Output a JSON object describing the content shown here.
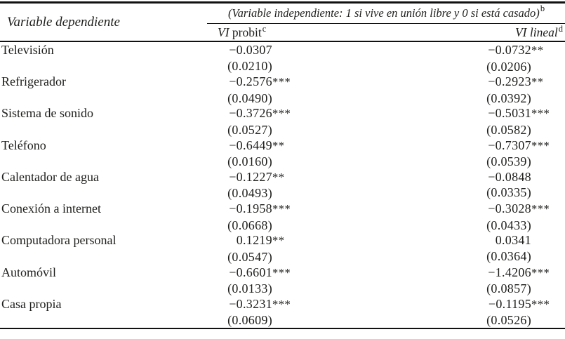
{
  "table": {
    "col0_header": "Variable dependiente",
    "span_header": "(Variable independiente: 1 si vive en unión libre y 0 si está casado)",
    "span_header_sup": "b",
    "col1_header_vi": "VI",
    "col1_header_rest": " probit",
    "col1_header_sup": "c",
    "col2_header_vi": "VI",
    "col2_header_rest": " lineal",
    "col2_header_sup": "d",
    "rows": [
      {
        "label": "Televisión",
        "probit_coef": "−0.0307",
        "probit_stars": "",
        "probit_se": "(0.0210)",
        "lineal_coef": "−0.0732",
        "lineal_stars": "**",
        "lineal_se": "(0.0206)"
      },
      {
        "label": "Refrigerador",
        "probit_coef": "−0.2576",
        "probit_stars": "***",
        "probit_se": "(0.0490)",
        "lineal_coef": "−0.2923",
        "lineal_stars": "**",
        "lineal_se": "(0.0392)"
      },
      {
        "label": "Sistema de sonido",
        "probit_coef": "−0.3726",
        "probit_stars": "***",
        "probit_se": "(0.0527)",
        "lineal_coef": "−0.5031",
        "lineal_stars": "***",
        "lineal_se": "(0.0582)"
      },
      {
        "label": "Teléfono",
        "probit_coef": "−0.6449",
        "probit_stars": "**",
        "probit_se": "(0.0160)",
        "lineal_coef": "−0.7307",
        "lineal_stars": "***",
        "lineal_se": "(0.0539)"
      },
      {
        "label": "Calentador de agua",
        "probit_coef": "−0.1227",
        "probit_stars": "**",
        "probit_se": "(0.0493)",
        "lineal_coef": "−0.0848",
        "lineal_stars": "",
        "lineal_se": "(0.0335)"
      },
      {
        "label": "Conexión a internet",
        "probit_coef": "−0.1958",
        "probit_stars": "***",
        "probit_se": "(0.0668)",
        "lineal_coef": "−0.3028",
        "lineal_stars": "***",
        "lineal_se": "(0.0433)"
      },
      {
        "label": "Computadora personal",
        "probit_coef": "0.1219",
        "probit_stars": "**",
        "probit_se": "(0.0547)",
        "lineal_coef": "0.0341",
        "lineal_stars": "",
        "lineal_se": "(0.0364)"
      },
      {
        "label": "Automóvil",
        "probit_coef": "−0.6601",
        "probit_stars": "***",
        "probit_se": "(0.0133)",
        "lineal_coef": "−1.4206",
        "lineal_stars": "***",
        "lineal_se": "(0.0857)"
      },
      {
        "label": "Casa propia",
        "probit_coef": "−0.3231",
        "probit_stars": "***",
        "probit_se": "(0.0609)",
        "lineal_coef": "−0.1195",
        "lineal_stars": "***",
        "lineal_se": "(0.0526)"
      }
    ]
  }
}
